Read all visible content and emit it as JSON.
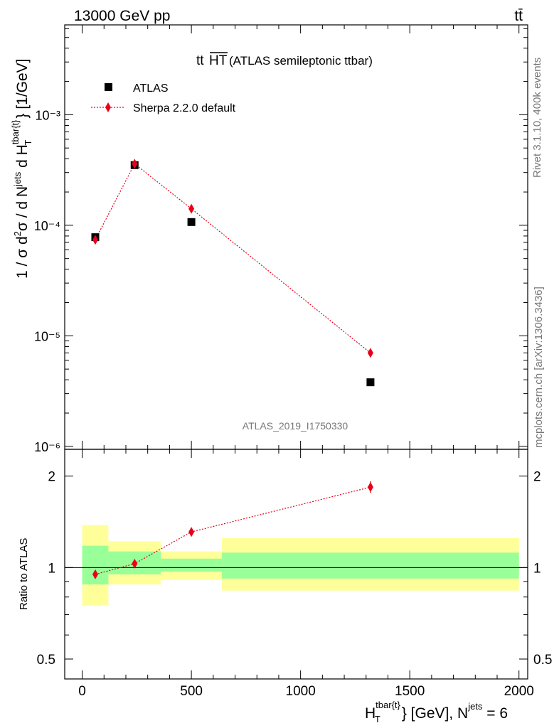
{
  "header": {
    "left": "13000 GeV pp",
    "right": "tt̄"
  },
  "side": {
    "rivet": "Rivet 3.1.10,  400k events",
    "mcplots": "mcplots.cern.ch [arXiv:1306.3436]"
  },
  "chart_data": [
    {
      "type": "scatter",
      "title_main": "tt",
      "title_over": "HT",
      "title_rest": " (ATLAS semileptonic ttbar)",
      "watermark": "ATLAS_2019_I1750330",
      "ylabel": "1 / σ d²σ / d N^jets d H_T^tbar{t} [1/GeV]",
      "yscale": "log",
      "xlim": [
        -80,
        2040
      ],
      "ylim": [
        9.4e-07,
        0.0065
      ],
      "y_tick_labels": [
        "10⁻⁶",
        "10⁻⁵",
        "10⁻⁴",
        "10⁻³"
      ],
      "legend_position": "top-left",
      "series": [
        {
          "name": "ATLAS",
          "marker": "square",
          "color": "#000000",
          "x": [
            60,
            240,
            500,
            1320
          ],
          "y": [
            7.8e-05,
            0.00035,
            0.000107,
            3.8e-06
          ]
        },
        {
          "name": "Sherpa 2.2.0 default",
          "marker": "diamond",
          "color": "#e8001b",
          "line": "dotted",
          "x": [
            60,
            240,
            500,
            1320
          ],
          "y": [
            7.4e-05,
            0.00036,
            0.000141,
            7e-06
          ]
        }
      ]
    },
    {
      "type": "scatter",
      "ylabel": "Ratio to ATLAS",
      "xlabel": "H_T^tbar{t} [GeV], N^jets = 6",
      "yscale": "log",
      "xlim": [
        -80,
        2040
      ],
      "ylim": [
        0.43,
        2.45
      ],
      "x_tick_labels": [
        "0",
        "500",
        "1000",
        "1500",
        "2000"
      ],
      "y_tick_labels": [
        "0.5",
        "1",
        "2"
      ],
      "bands": [
        {
          "x": [
            0,
            120
          ],
          "yellow": [
            0.75,
            1.38
          ],
          "green": [
            0.88,
            1.18
          ]
        },
        {
          "x": [
            120,
            360
          ],
          "yellow": [
            0.88,
            1.22
          ],
          "green": [
            0.95,
            1.13
          ]
        },
        {
          "x": [
            360,
            640
          ],
          "yellow": [
            0.91,
            1.13
          ],
          "green": [
            0.97,
            1.07
          ]
        },
        {
          "x": [
            640,
            2000
          ],
          "yellow": [
            0.84,
            1.25
          ],
          "green": [
            0.92,
            1.12
          ]
        }
      ],
      "series": [
        {
          "name": "Sherpa 2.2.0 default",
          "color": "#e8001b",
          "x": [
            60,
            240,
            500,
            1320
          ],
          "y": [
            0.95,
            1.03,
            1.31,
            1.84
          ]
        }
      ]
    }
  ]
}
